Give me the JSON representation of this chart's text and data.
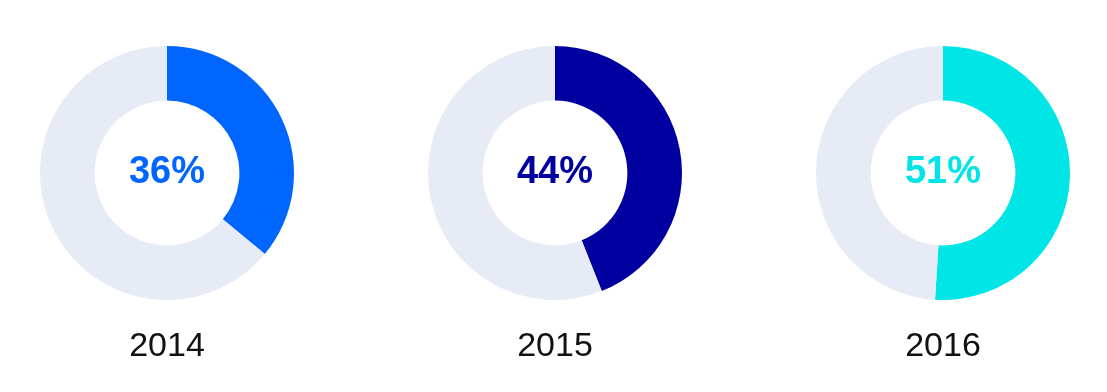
{
  "chart_data": [
    {
      "type": "donut",
      "title": "2014",
      "categories": [
        null,
        null
      ],
      "values": [
        36,
        64
      ],
      "colors": [
        "#0066ff",
        "#e6ebf6"
      ],
      "annotations": [
        "36%"
      ]
    },
    {
      "type": "donut",
      "title": "2015",
      "categories": [
        null,
        null
      ],
      "values": [
        44,
        56
      ],
      "colors": [
        "#0000a0",
        "#e6ebf6"
      ],
      "annotations": [
        "44%"
      ]
    },
    {
      "type": "donut",
      "title": "2016",
      "categories": [
        null,
        null
      ],
      "values": [
        51,
        49
      ],
      "colors": [
        "#00e5e5",
        "#e6ebf6"
      ],
      "annotations": [
        "51%"
      ]
    }
  ]
}
